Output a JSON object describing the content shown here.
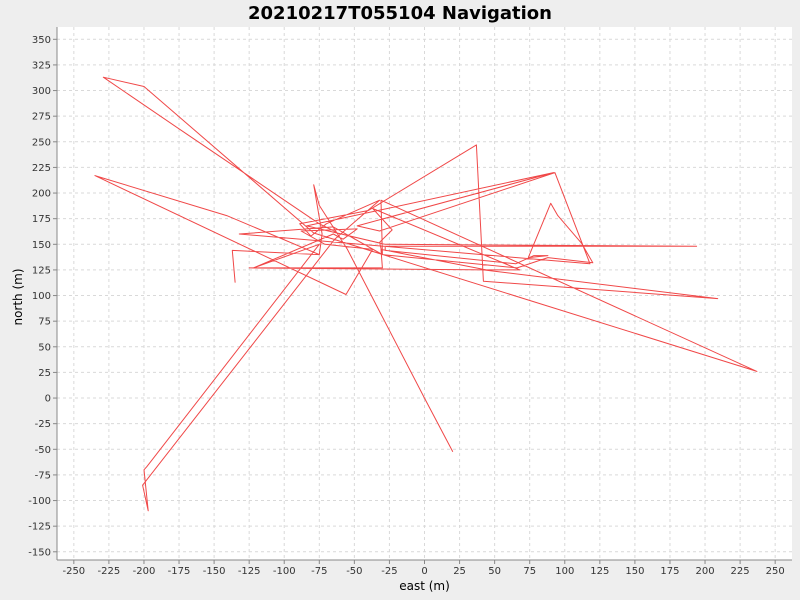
{
  "chart_data": {
    "type": "line",
    "title": "20210217T055104 Navigation",
    "xlabel": "east (m)",
    "ylabel": "north (m)",
    "xlim": [
      -262,
      262
    ],
    "ylim": [
      -158,
      362
    ],
    "x_ticks": [
      -250,
      -225,
      -200,
      -175,
      -150,
      -125,
      -100,
      -75,
      -50,
      -25,
      0,
      25,
      50,
      75,
      100,
      125,
      150,
      175,
      200,
      225,
      250
    ],
    "y_ticks": [
      -150,
      -125,
      -100,
      -75,
      -50,
      -25,
      0,
      25,
      50,
      75,
      100,
      125,
      150,
      175,
      200,
      225,
      250,
      275,
      300,
      325,
      350
    ],
    "grid": true,
    "line_color": "#f04848",
    "series": [
      {
        "points": [
          [
            20,
            -52
          ],
          [
            0,
            0
          ],
          [
            -55,
            145
          ],
          [
            -75,
            188
          ],
          [
            -79,
            208
          ],
          [
            -73,
            160
          ],
          [
            -75,
            140
          ],
          [
            -137,
            144
          ],
          [
            -135,
            113
          ],
          [
            -137,
            144
          ],
          [
            -75,
            140
          ],
          [
            -141,
            178
          ],
          [
            -235,
            217
          ],
          [
            -56,
            101
          ],
          [
            -37,
            145
          ],
          [
            -71,
            150
          ],
          [
            -88,
            163
          ],
          [
            -48,
            165
          ],
          [
            -58,
            155
          ],
          [
            -65,
            160
          ],
          [
            -122,
            127
          ],
          [
            -75,
            150
          ],
          [
            -198,
            -67
          ],
          [
            -200,
            -70
          ],
          [
            -197,
            -110
          ],
          [
            -201,
            -85
          ],
          [
            -64,
            155
          ],
          [
            -32,
            193
          ],
          [
            -70,
            170
          ],
          [
            -81,
            158
          ],
          [
            -89,
            170
          ],
          [
            -40,
            183
          ],
          [
            37,
            247
          ],
          [
            42,
            114
          ],
          [
            209,
            97
          ],
          [
            42,
            125
          ],
          [
            -125,
            127
          ],
          [
            -30,
            127
          ],
          [
            -31,
            145
          ],
          [
            44,
            125
          ],
          [
            68,
            125
          ],
          [
            -37,
            185
          ],
          [
            -23,
            164
          ],
          [
            -32,
            152
          ],
          [
            -30,
            140
          ],
          [
            -65,
            167
          ],
          [
            -132,
            160
          ],
          [
            118,
            131
          ],
          [
            93,
            220
          ],
          [
            -32,
            163
          ],
          [
            -48,
            168
          ],
          [
            92,
            220
          ],
          [
            -84,
            168
          ],
          [
            -28,
            150
          ],
          [
            194,
            148
          ],
          [
            -28,
            148
          ],
          [
            -28,
            144
          ],
          [
            65,
            131
          ],
          [
            78,
            139
          ],
          [
            88,
            139
          ],
          [
            74,
            137
          ],
          [
            90,
            190
          ],
          [
            95,
            178
          ],
          [
            112,
            151
          ],
          [
            120,
            132
          ],
          [
            88,
            137
          ],
          [
            66,
            127
          ],
          [
            -30,
            140
          ],
          [
            -31,
            193
          ],
          [
            237,
            26
          ],
          [
            -79,
            161
          ],
          [
            -200,
            304
          ],
          [
            -229,
            313
          ],
          [
            -170,
            258
          ],
          [
            -75,
            170
          ],
          [
            -63,
            162
          ]
        ]
      }
    ]
  }
}
